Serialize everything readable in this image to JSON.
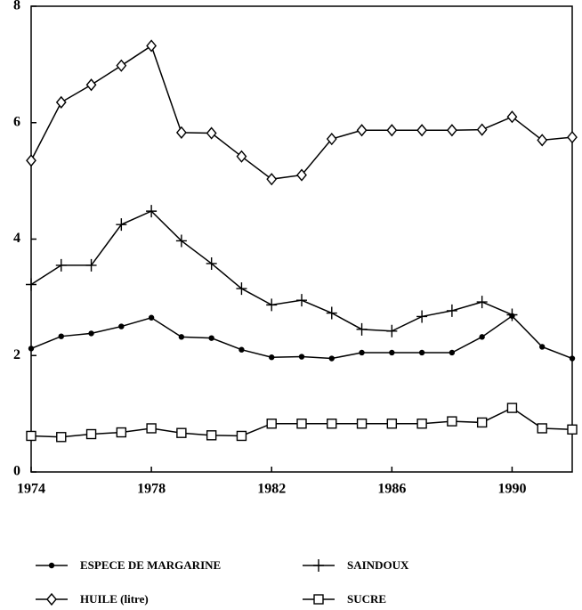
{
  "chart_data": {
    "type": "line",
    "x": [
      1974,
      1975,
      1976,
      1977,
      1978,
      1979,
      1980,
      1981,
      1982,
      1983,
      1984,
      1985,
      1986,
      1987,
      1988,
      1989,
      1990,
      1991,
      1992
    ],
    "xlim": [
      1974,
      1992
    ],
    "xticks": [
      1974,
      1978,
      1982,
      1986,
      1990
    ],
    "ylim": [
      0,
      8
    ],
    "yticks": [
      0,
      2,
      4,
      6,
      8
    ],
    "series": [
      {
        "name": "ESPECE DE MARGARINE",
        "color": "#000000",
        "marker": "dot",
        "values": [
          2.12,
          2.33,
          2.38,
          2.5,
          2.65,
          2.32,
          2.3,
          2.1,
          1.97,
          1.98,
          1.95,
          2.05,
          2.05,
          2.05,
          2.05,
          2.32,
          2.68,
          2.15,
          1.95
        ]
      },
      {
        "name": "SAINDOUX",
        "color": "#000000",
        "marker": "plus",
        "values": [
          3.22,
          3.55,
          3.55,
          4.25,
          4.48,
          3.97,
          3.58,
          3.15,
          2.87,
          2.95,
          2.73,
          2.45,
          2.42,
          2.67,
          2.77,
          2.92,
          2.7,
          null,
          null
        ]
      },
      {
        "name": "HUILE (litre)",
        "color": "#000000",
        "marker": "diamond",
        "values": [
          5.35,
          6.35,
          6.65,
          6.98,
          7.32,
          5.83,
          5.82,
          5.42,
          5.03,
          5.1,
          5.72,
          5.87,
          5.87,
          5.87,
          5.87,
          5.88,
          6.1,
          5.7,
          5.75
        ]
      },
      {
        "name": "SUCRE",
        "color": "#000000",
        "marker": "square",
        "values": [
          0.62,
          0.6,
          0.65,
          0.68,
          0.75,
          0.67,
          0.63,
          0.62,
          0.83,
          0.83,
          0.83,
          0.83,
          0.83,
          0.83,
          0.87,
          0.85,
          1.1,
          0.75,
          0.73
        ]
      }
    ]
  }
}
